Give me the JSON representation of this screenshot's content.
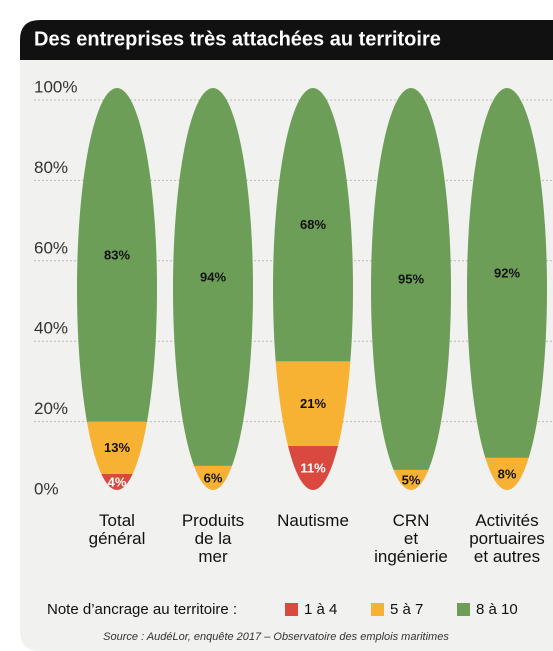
{
  "chart_data": {
    "type": "stacked-spindle",
    "title": "Des entreprises très attachées au territoire",
    "categories": [
      "Total\ngénéral",
      "Produits\nde la\nmer",
      "Nautisme",
      "CRN\net\ningénierie",
      "Activités\nportuaires\net autres"
    ],
    "series": [
      {
        "name": "1 à 4",
        "color": "#d9493f",
        "values": [
          4,
          null,
          11,
          null,
          null
        ],
        "value_labels": [
          "4%",
          null,
          "11%",
          null,
          null
        ]
      },
      {
        "name": "5 à 7",
        "color": "#f8b233",
        "values": [
          13,
          6,
          21,
          5,
          8
        ],
        "value_labels": [
          "13%",
          "6%",
          "21%",
          "5%",
          "8%"
        ]
      },
      {
        "name": "8 à 10",
        "color": "#6c9e57",
        "values": [
          83,
          94,
          68,
          95,
          92
        ],
        "value_labels": [
          "83%",
          "94%",
          "68%",
          "95%",
          "92%"
        ]
      }
    ],
    "ylim": [
      0,
      100
    ],
    "yticks": [
      {
        "value": 0,
        "label": "0%"
      },
      {
        "value": 20,
        "label": "20%"
      },
      {
        "value": 40,
        "label": "40%"
      },
      {
        "value": 60,
        "label": "60%"
      },
      {
        "value": 80,
        "label": "80%"
      },
      {
        "value": 100,
        "label": "100%"
      }
    ],
    "grid": true,
    "legend_title": "Note d’ancrage au territoire :",
    "source": "Source : AudéLor, enquête 2017 – Observatoire des emplois maritimes"
  }
}
